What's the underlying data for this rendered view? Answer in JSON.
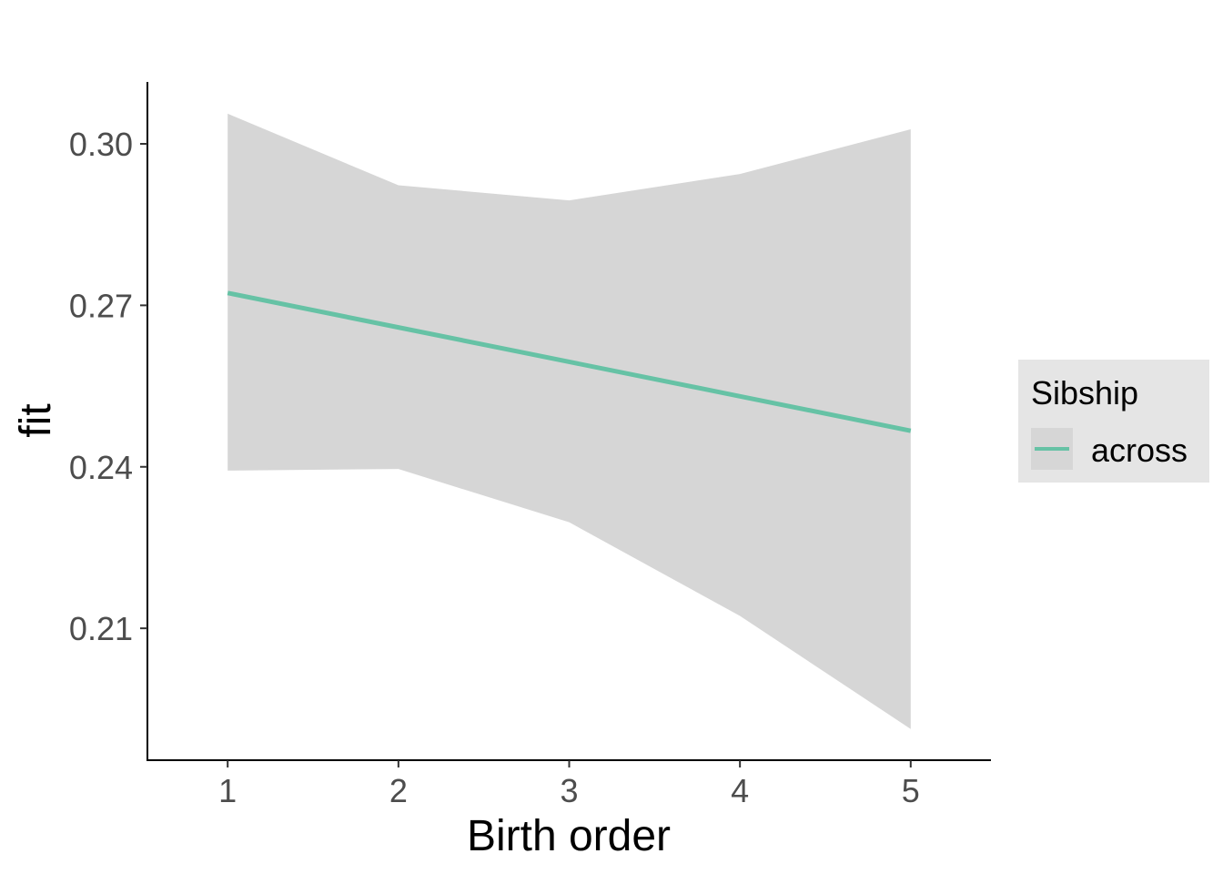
{
  "chart_data": {
    "type": "line",
    "x": [
      1,
      2,
      3,
      4,
      5
    ],
    "x_ticks": [
      "1",
      "2",
      "3",
      "4",
      "5"
    ],
    "y_ticks": [
      "0.21",
      "0.24",
      "0.27",
      "0.30"
    ],
    "y_tick_values": [
      0.21,
      0.24,
      0.27,
      0.3
    ],
    "xlabel": "Birth order",
    "ylabel": "fit",
    "xlim": [
      0.53,
      5.47
    ],
    "ylim": [
      0.1855,
      0.3115
    ],
    "series": [
      {
        "name": "across",
        "color": "#66c2a5",
        "values": [
          0.2723,
          0.2659,
          0.2595,
          0.2531,
          0.2467
        ],
        "ci_lower": [
          0.2393,
          0.2396,
          0.2297,
          0.2123,
          0.1913
        ],
        "ci_upper": [
          0.3056,
          0.2923,
          0.2895,
          0.2944,
          0.3027
        ]
      }
    ],
    "ribbon_color": "#d6d6d6",
    "grid": false,
    "legend": {
      "title": "Sibship",
      "placement": "right",
      "background": "#e5e5e5"
    }
  }
}
